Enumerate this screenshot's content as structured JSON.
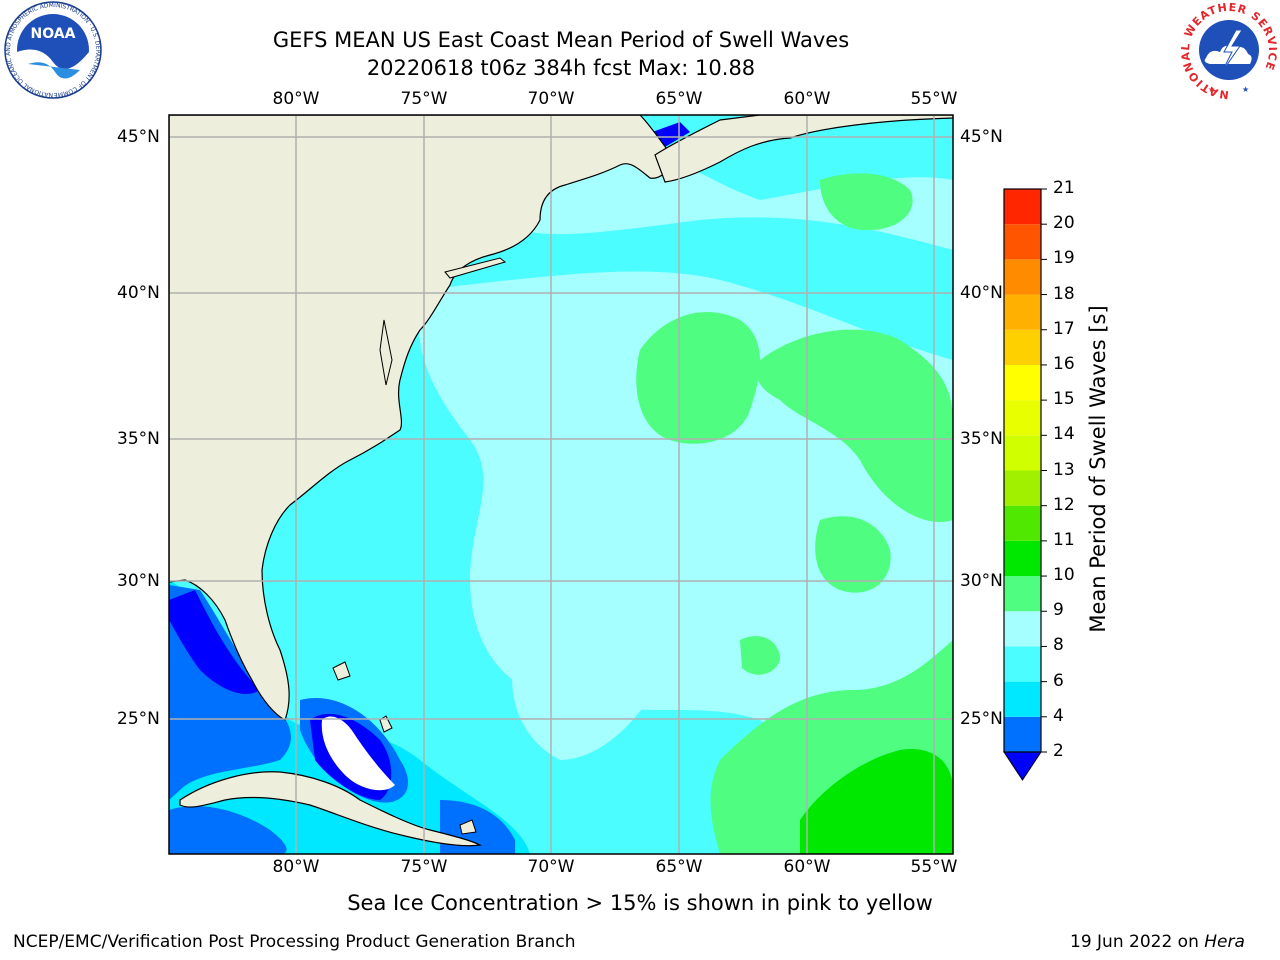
{
  "header": {
    "title_line1": "GEFS MEAN US East Coast Mean Period of Swell Waves",
    "title_line2": "20220618 t06z 384h fcst   Max: 10.88"
  },
  "logos": {
    "noaa_text": "NOAA",
    "noaa_ring_text": "NATIONAL OCEANIC AND ATMOSPHERIC ADMINISTRATION · U.S. DEPARTMENT OF COMMERCE",
    "nws_ring_text": "NATIONAL WEATHER SERVICE"
  },
  "map": {
    "lon_labels": [
      "80°W",
      "75°W",
      "70°W",
      "65°W",
      "60°W",
      "55°W"
    ],
    "lat_labels": [
      "45°N",
      "40°N",
      "35°N",
      "30°N",
      "25°N"
    ],
    "colors": {
      "land": "#eeeedd",
      "coast": "#000000",
      "grid": "#b0b0b0"
    }
  },
  "colorbar": {
    "title": "Mean Period of Swell Waves [s]",
    "levels": [
      "2",
      "4",
      "6",
      "8",
      "9",
      "10",
      "11",
      "12",
      "13",
      "14",
      "15",
      "16",
      "17",
      "18",
      "19",
      "20",
      "21"
    ],
    "colors": [
      "#0070ff",
      "#00e8ff",
      "#4bfdff",
      "#a6ffff",
      "#4ffd80",
      "#00e800",
      "#50e800",
      "#a0f000",
      "#d0ff00",
      "#e8ff00",
      "#ffff00",
      "#ffd000",
      "#ffb000",
      "#ff8c00",
      "#ff5500",
      "#ff2600",
      "#ff0000"
    ],
    "under_color": "#0000ff"
  },
  "footer": {
    "subtitle": "Sea Ice Concentration > 15% is shown in pink to yellow",
    "left": "NCEP/EMC/Verification Post Processing Product Generation Branch",
    "right_date": "19 Jun 2022 on ",
    "right_host": "Hera"
  }
}
